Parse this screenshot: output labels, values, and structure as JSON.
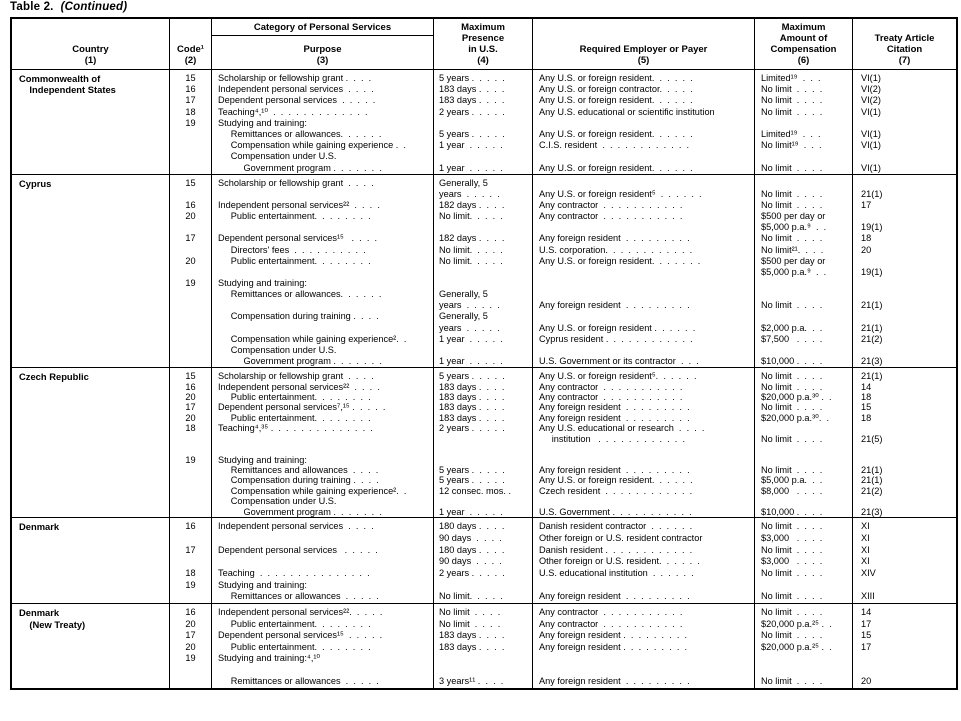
{
  "title": {
    "prefix": "Table 2.",
    "continued": "(Continued)"
  },
  "header": {
    "country": [
      "Country",
      "(1)"
    ],
    "code": [
      "Code¹",
      "(2)"
    ],
    "category": "Category of Personal Services",
    "purpose": [
      "Purpose",
      "(3)"
    ],
    "presence": [
      "Maximum",
      "Presence",
      "in U.S.",
      "(4)"
    ],
    "payer": [
      "Required Employer or Payer",
      "(5)"
    ],
    "comp": [
      "Maximum",
      "Amount of",
      "Compensation",
      "(6)"
    ],
    "cite": [
      "Treaty Article",
      "Citation",
      "(7)"
    ]
  },
  "rows": [
    {
      "country": [
        "Commonwealth of",
        "    Independent States"
      ],
      "lines": [
        {
          "code": "15",
          "purpose": "Scholarship or fellowship grant .  .  .  .",
          "presence": "5 years .  .  .  .  .",
          "payer": "Any U.S. or foreign resident.  .  .  .  .  .",
          "comp": "Limited¹⁹  .  .  .",
          "cite": "VI(1)"
        },
        {
          "code": "16",
          "purpose": "Independent personal services  .  .  .  .",
          "presence": "183 days .  .  .  .",
          "payer": "Any U.S. or foreign contractor.  .  .  .  .",
          "comp": "No limit  .  .  .  .",
          "cite": "VI(2)"
        },
        {
          "code": "17",
          "purpose": "Dependent personal services  .  .  .  .  .",
          "presence": "183 days .  .  .  .",
          "payer": "Any U.S. or foreign resident.  .  .  .  .  .",
          "comp": "No limit  .  .  .  .",
          "cite": "VI(2)"
        },
        {
          "code": "18",
          "purpose": "Teaching⁴,¹⁰  .  .  .  .  .  .  .  .  .  .  .  .  .",
          "presence": "2 years .  .  .  .  .",
          "payer": "Any U.S. educational or scientific institution",
          "comp": "No limit  .  .  .  .",
          "cite": "VI(1)"
        },
        {
          "code": "19",
          "purpose": "Studying and training:"
        },
        {
          "purpose": "     Remittances or allowances.  .  .  .  .  .",
          "presence": "5 years .  .  .  .  .",
          "payer": "Any U.S. or foreign resident.  .  .  .  .  .",
          "comp": "Limited¹⁹  .  .  .",
          "cite": "VI(1)"
        },
        {
          "purpose": "     Compensation while gaining experience .  .",
          "presence": "1 year  .  .  .  .  .",
          "payer": "C.I.S. resident  .  .  .  .  .  .  .  .  .  .  .  .",
          "comp": "No limit¹⁹  .  .  .",
          "cite": "VI(1)"
        },
        {
          "purpose": "     Compensation under U.S."
        },
        {
          "purpose": "          Government program .  .  .  .  .  .  .",
          "presence": "1 year  .  .  .  .  .",
          "payer": "Any U.S. or foreign resident.  .  .  .  .  .",
          "comp": "No limit  .  .  .  .",
          "cite": "VI(1)"
        }
      ]
    },
    {
      "country": [
        "Cyprus"
      ],
      "lines": [
        {
          "code": "15",
          "purpose": "Scholarship or fellowship grant  .  .  .  .",
          "presence": "Generally, 5"
        },
        {
          "presence": "years  .  .  .  .  .",
          "payer": "Any U.S. or foreign resident⁵  .  .  .  .  .  .",
          "comp": "No limit  .  .  .  .",
          "cite": "21(1)"
        },
        {
          "code": "16",
          "purpose": "Independent personal services²²  .  .  .  .",
          "presence": "182 days .  .  .  .",
          "payer": "Any contractor  .  .  .  .  .  .  .  .  .  .  .",
          "comp": "No limit  .  .  .  .",
          "cite": "17"
        },
        {
          "code": "20",
          "purpose": "     Public entertainment.  .  .  .  .  .  .  .",
          "presence": "No limit.  .  .  .  .",
          "payer": "Any contractor  .  .  .  .  .  .  .  .  .  .  .",
          "comp": "$500 per day or"
        },
        {
          "comp": "$5,000 p.a.⁹  .  .",
          "cite": "19(1)"
        },
        {
          "code": "17",
          "purpose": "Dependent personal services¹⁵   .  .  .  .",
          "presence": "182 days .  .  .  .",
          "payer": "Any foreign resident  .  .  .  .  .  .  .  .  .",
          "comp": "No limit  .  .  .  .",
          "cite": "18"
        },
        {
          "purpose": "     Directors' fees  .  .  .  .  .  .  .  .  .  .",
          "presence": "No limit.  .  .  .  .",
          "payer": "U.S. corporation.  .  .  .  .  .  .  .  .  .  .  .",
          "comp": "No limit²¹.  .  .  .",
          "cite": "20"
        },
        {
          "code": "20",
          "purpose": "     Public entertainment.  .  .  .  .  .  .  .",
          "presence": "No limit.  .  .  .  .",
          "payer": "Any U.S. or foreign resident.  .  .  .  .  .  .",
          "comp": "$500 per day or"
        },
        {
          "comp": "$5,000 p.a.⁹  .  .",
          "cite": "19(1)"
        },
        {
          "code": "19",
          "purpose": "Studying and training:"
        },
        {
          "purpose": "     Remittances or allowances.  .  .  .  .  .",
          "presence": "Generally, 5"
        },
        {
          "presence": "years  .  .  .  .  .",
          "payer": "Any foreign resident  .  .  .  .  .  .  .  .  .",
          "comp": "No limit  .  .  .  .",
          "cite": "21(1)"
        },
        {
          "purpose": "     Compensation during training .  .  .  .",
          "presence": "Generally, 5"
        },
        {
          "presence": "years  .  .  .  .  .",
          "payer": "Any U.S. or foreign resident .  .  .  .  .  .",
          "comp": "$2,000 p.a.  .  .",
          "cite": "21(1)"
        },
        {
          "purpose": "     Compensation while gaining experience².  .",
          "presence": "1 year  .  .  .  .  .",
          "payer": "Cyprus resident .  .  .  .  .  .  .  .  .  .  .  .",
          "comp": "$7,500   .  .  .  .",
          "cite": "21(2)"
        },
        {
          "purpose": "     Compensation under U.S."
        },
        {
          "purpose": "          Government program .  .  .  .  .  .  .",
          "presence": "1 year  .  .  .  .  .",
          "payer": "U.S. Government or its contractor  .  .  .",
          "comp": "$10,000 .  .  .  .",
          "cite": "21(3)"
        }
      ]
    },
    {
      "country": [
        "Czech Republic"
      ],
      "lines": [
        {
          "code": "15",
          "purpose": "Scholarship or fellowship grant  .  .  .  .",
          "presence": "5 years .  .  .  .  .",
          "payer": "Any U.S. or foreign resident⁵.  .  .  .  .  .",
          "comp": "No limit  .  .  .  .",
          "cite": "21(1)"
        },
        {
          "code": "16",
          "purpose": "Independent personal services²²  .  .  .  .",
          "presence": "183 days .  .  .  .",
          "payer": "Any contractor  .  .  .  .  .  .  .  .  .  .  .",
          "comp": "No limit  .  .  .  .",
          "cite": "14"
        },
        {
          "code": "20",
          "purpose": "     Public entertainment.  .  .  .  .  .  .  .",
          "presence": "183 days .  .  .  .",
          "payer": "Any contractor  .  .  .  .  .  .  .  .  .  .  .",
          "comp": "$20,000 p.a.³⁰ .  .",
          "cite": "18"
        },
        {
          "code": "17",
          "purpose": "Dependent personal services⁷,¹⁵ .  .  .  .  .",
          "presence": "183 days .  .  .  .",
          "payer": "Any foreign resident  .  .  .  .  .  .  .  .  .",
          "comp": "No limit  .  .  .  .",
          "cite": "15"
        },
        {
          "code": "20",
          "purpose": "     Public entertainment.  .  .  .  .  .  .  .",
          "presence": "183 days .  .  .  .",
          "payer": "Any foreign resident  .  .  .  .  .  .  .  .  .",
          "comp": "$20,000 p.a.³⁰.  .",
          "cite": "18"
        },
        {
          "code": "18",
          "purpose": "Teaching⁴,³⁵ .  .  .  .  .  .  .  .  .  .  .  .  .  .",
          "presence": "2 years .  .  .  .  .",
          "payer": "Any U.S. educational or research  .  .  .  ."
        },
        {
          "payer": "     institution   .  .  .  .  .  .  .  .  .  .  .  .",
          "comp": "No limit  .  .  .  .",
          "cite": "21(5)"
        },
        {},
        {
          "code": "19",
          "purpose": "Studying and training:"
        },
        {
          "purpose": "     Remittances and allowances  .  .  .  .",
          "presence": "5 years .  .  .  .  .",
          "payer": "Any foreign resident  .  .  .  .  .  .  .  .  .",
          "comp": "No limit  .  .  .  .",
          "cite": "21(1)"
        },
        {
          "purpose": "     Compensation during training .  .  .  .",
          "presence": "5 years .  .  .  .  .",
          "payer": "Any U.S. or foreign resident.  .  .  .  .  .",
          "comp": "$5,000 p.a.  .  .",
          "cite": "21(1)"
        },
        {
          "purpose": "     Compensation while gaining experience².  .",
          "presence": "12 consec. mos. .",
          "payer": "Czech resident  .  .  .  .  .  .  .  .  .  .  .  .",
          "comp": "$8,000   .  .  .  .",
          "cite": "21(2)"
        },
        {
          "purpose": "     Compensation under U.S."
        },
        {
          "purpose": "          Government program .  .  .  .  .  .  .",
          "presence": "1 year  .  .  .  .  .",
          "payer": "U.S. Government .  .  .  .  .  .  .  .  .  .  .",
          "comp": "$10,000 .  .  .  .",
          "cite": "21(3)"
        }
      ]
    },
    {
      "country": [
        "Denmark"
      ],
      "lines": [
        {
          "code": "16",
          "purpose": "Independent personal services  .  .  .  .",
          "presence": "180 days .  .  .  .",
          "payer": "Danish resident contractor  .  .  .  .  .  .",
          "comp": "No limit  .  .  .  .",
          "cite": "XI"
        },
        {
          "presence": "90 days  .  .  .  .",
          "payer": "Other foreign or U.S. resident contractor",
          "comp": "$3,000   .  .  .  .",
          "cite": "XI"
        },
        {
          "code": "17",
          "purpose": "Dependent personal services   .  .  .  .  .",
          "presence": "180 days .  .  .  .",
          "payer": "Danish resident .  .  .  .  .  .  .  .  .  .  .  .",
          "comp": "No limit  .  .  .  .",
          "cite": "XI"
        },
        {
          "presence": "90 days  .  .  .  .",
          "payer": "Other foreign or U.S. resident.  .  .  .  .  .",
          "comp": "$3,000   .  .  .  .",
          "cite": "XI"
        },
        {
          "code": "18",
          "purpose": "Teaching  .  .  .  .  .  .  .  .  .  .  .  .  .  .  .",
          "presence": "2 years .  .  .  .  .",
          "payer": "U.S. educational institution  .  .  .  .  .  .",
          "comp": "No limit  .  .  .  .",
          "cite": "XIV"
        },
        {
          "code": "19",
          "purpose": "Studying and training:"
        },
        {
          "purpose": "     Remittances or allowances  .  .  .  .  .",
          "presence": "No limit.  .  .  .  .",
          "payer": "Any foreign resident  .  .  .  .  .  .  .  .  .",
          "comp": "No limit  .  .  .  .",
          "cite": "XIII"
        }
      ]
    },
    {
      "country": [
        "Denmark",
        "    (New Treaty)"
      ],
      "lines": [
        {
          "code": "16",
          "purpose": "Independent personal services²².  .  .  .  .",
          "presence": "No limit  .  .  .  .",
          "payer": "Any contractor  .  .  .  .  .  .  .  .  .  .  .",
          "comp": "No limit  .  .  .  .",
          "cite": "14"
        },
        {
          "code": "20",
          "purpose": "     Public entertainment.  .  .  .  .  .  .  .",
          "presence": "No limit  .  .  .  .",
          "payer": "Any contractor  .  .  .  .  .  .  .  .  .  .  .",
          "comp": "$20,000 p.a.²⁵ .  .",
          "cite": "17"
        },
        {
          "code": "17",
          "purpose": "Dependent personal services¹⁵  .  .  .  .  .",
          "presence": "183 days .  .  .  .",
          "payer": "Any foreign resident .  .  .  .  .  .  .  .  .",
          "comp": "No limit  .  .  .  .",
          "cite": "15"
        },
        {
          "code": "20",
          "purpose": "     Public entertainment.  .  .  .  .  .  .  .",
          "presence": "183 days .  .  .  .",
          "payer": "Any foreign resident .  .  .  .  .  .  .  .  .",
          "comp": "$20,000 p.a.²⁵ .  .",
          "cite": "17"
        },
        {
          "code": "19",
          "purpose": "Studying and training:⁴,¹⁰"
        },
        {},
        {
          "purpose": "     Remittances or allowances  .  .  .  .  .",
          "presence": "3 years¹¹ .  .  .  .",
          "payer": "Any foreign resident  .  .  .  .  .  .  .  .  .",
          "comp": "No limit  .  .  .  .",
          "cite": "20"
        }
      ]
    }
  ]
}
